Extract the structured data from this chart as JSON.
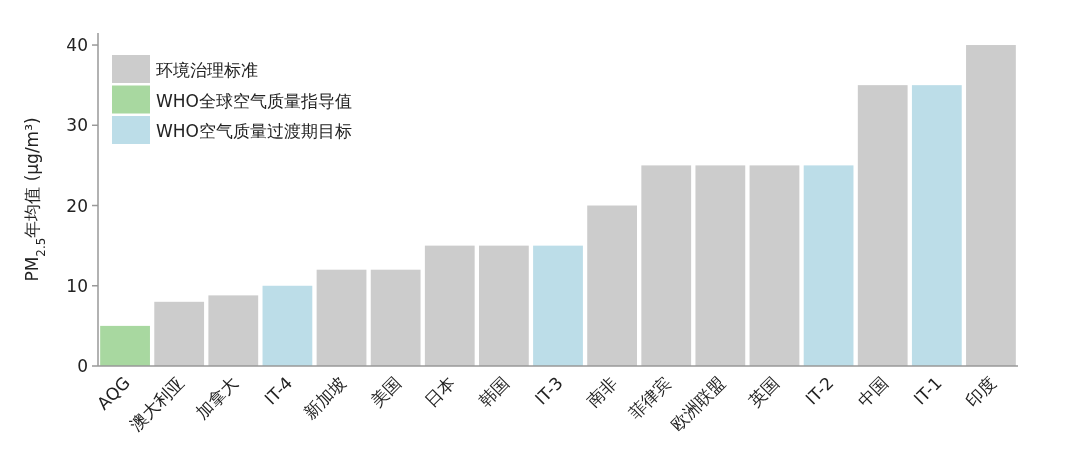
{
  "chart_data": {
    "type": "bar",
    "ylabel": "PM$_{2.5}$年均值 (μg/m³)",
    "categories": [
      "AQG",
      "澳大利亚",
      "加拿大",
      "IT-4",
      "新加坡",
      "美国",
      "日本",
      "韩国",
      "IT-3",
      "南非",
      "菲律宾",
      "欧洲联盟",
      "英国",
      "IT-2",
      "中国",
      "IT-1",
      "印度"
    ],
    "series": [
      {
        "name": "环境治理标准",
        "color": "#cccccc",
        "values": [
          null,
          8,
          8.8,
          null,
          12,
          12,
          15,
          15,
          null,
          20,
          25,
          25,
          25,
          null,
          35,
          null,
          40
        ]
      },
      {
        "name": "WHO全球空气质量指导值",
        "color": "#a8d8a0",
        "values": [
          5,
          null,
          null,
          null,
          null,
          null,
          null,
          null,
          null,
          null,
          null,
          null,
          null,
          null,
          null,
          null,
          null
        ]
      },
      {
        "name": "WHO空气质量过渡期目标",
        "color": "#bcdde8",
        "values": [
          null,
          null,
          null,
          10,
          null,
          null,
          null,
          null,
          15,
          null,
          null,
          null,
          null,
          25,
          null,
          35,
          null
        ]
      }
    ],
    "ylim": [
      0,
      41.5
    ],
    "yticks": [
      0,
      10,
      20,
      30,
      40
    ],
    "legend": "top left",
    "grid": false
  }
}
